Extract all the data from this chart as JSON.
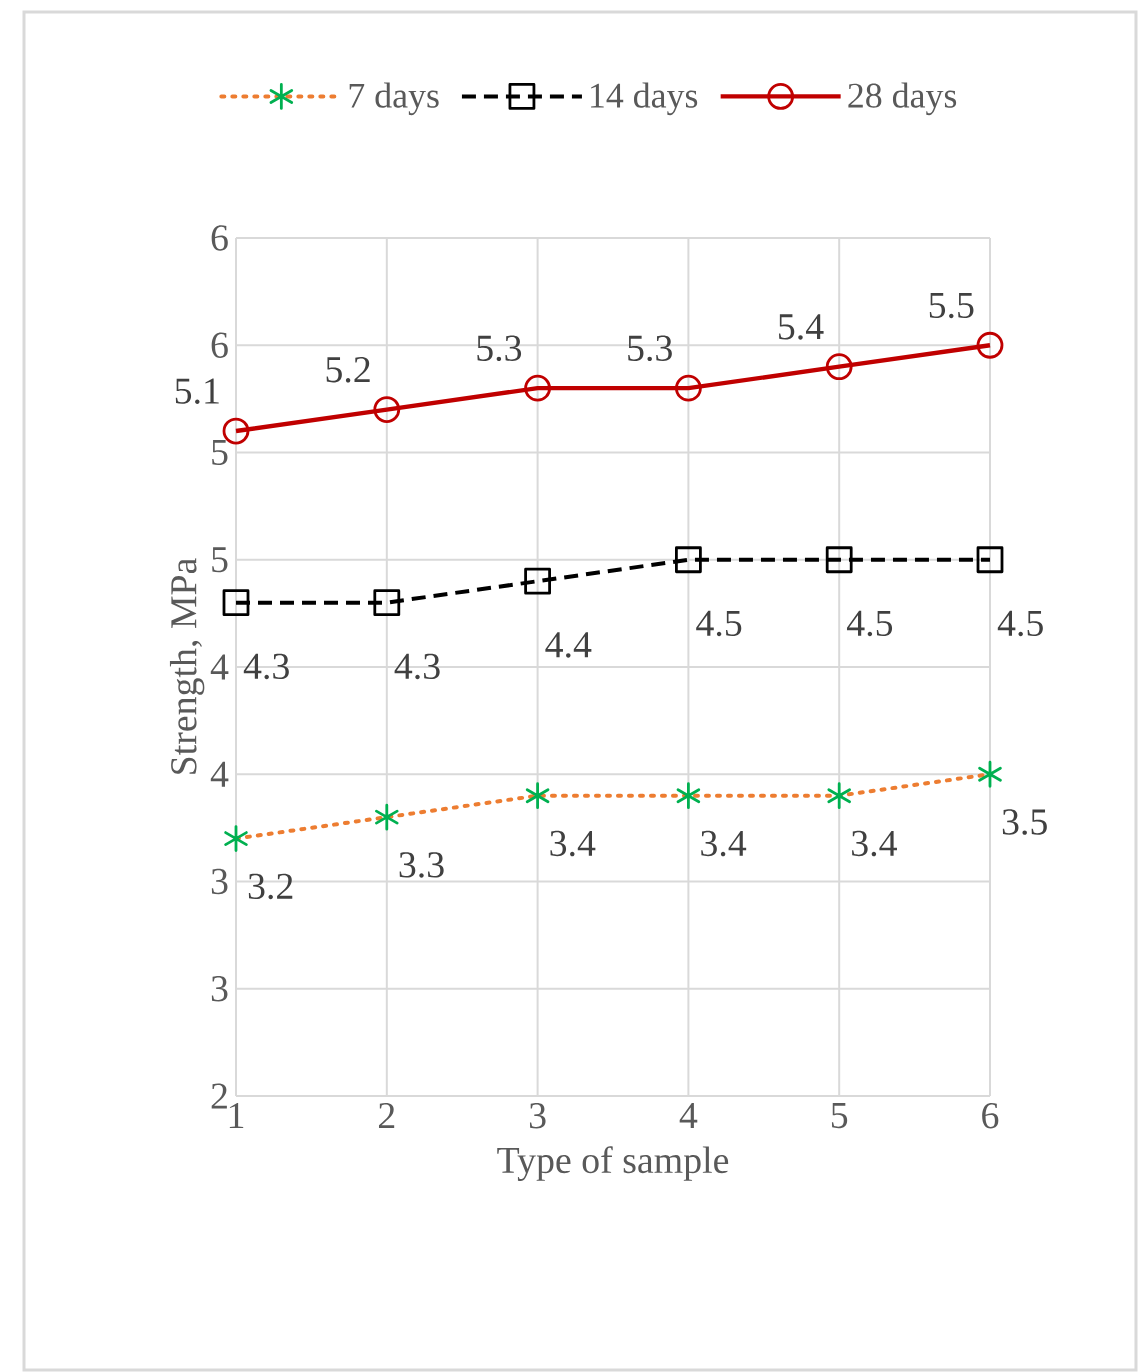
{
  "chart_data": {
    "type": "line",
    "xlabel": "Type of sample",
    "ylabel": "Strength, MPa",
    "x": [
      1,
      2,
      3,
      4,
      5,
      6
    ],
    "xlim": [
      1,
      6
    ],
    "xticks": [
      1,
      2,
      3,
      4,
      5,
      6
    ],
    "ylim": [
      2,
      6
    ],
    "yticks": [
      2,
      {
        "value": 2.5,
        "label": "3"
      },
      3,
      {
        "value": 3.5,
        "label": "4"
      },
      4,
      {
        "value": 4.5,
        "label": "5"
      },
      5,
      {
        "value": 5.5,
        "label": "6"
      },
      6
    ],
    "grid": true,
    "legend": "top",
    "data_labels": true,
    "series": [
      {
        "name": "7 days",
        "color": "#ed7d31",
        "colors": [
          "#00b050",
          "#00b050",
          "#00b050",
          "#00b050",
          "#00b050",
          "#00b050"
        ],
        "marker": "cross",
        "line_style": "dotted",
        "values": [
          3.2,
          3.3,
          3.4,
          3.4,
          3.4,
          3.5
        ]
      },
      {
        "name": "14 days",
        "color": "#000000",
        "marker": "square",
        "line_style": "dashed",
        "values": [
          4.3,
          4.3,
          4.4,
          4.5,
          4.5,
          4.5
        ]
      },
      {
        "name": "28 days",
        "color": "#c00000",
        "marker": "circle",
        "line_style": "solid",
        "values": [
          5.1,
          5.2,
          5.3,
          5.3,
          5.4,
          5.5
        ]
      }
    ]
  }
}
